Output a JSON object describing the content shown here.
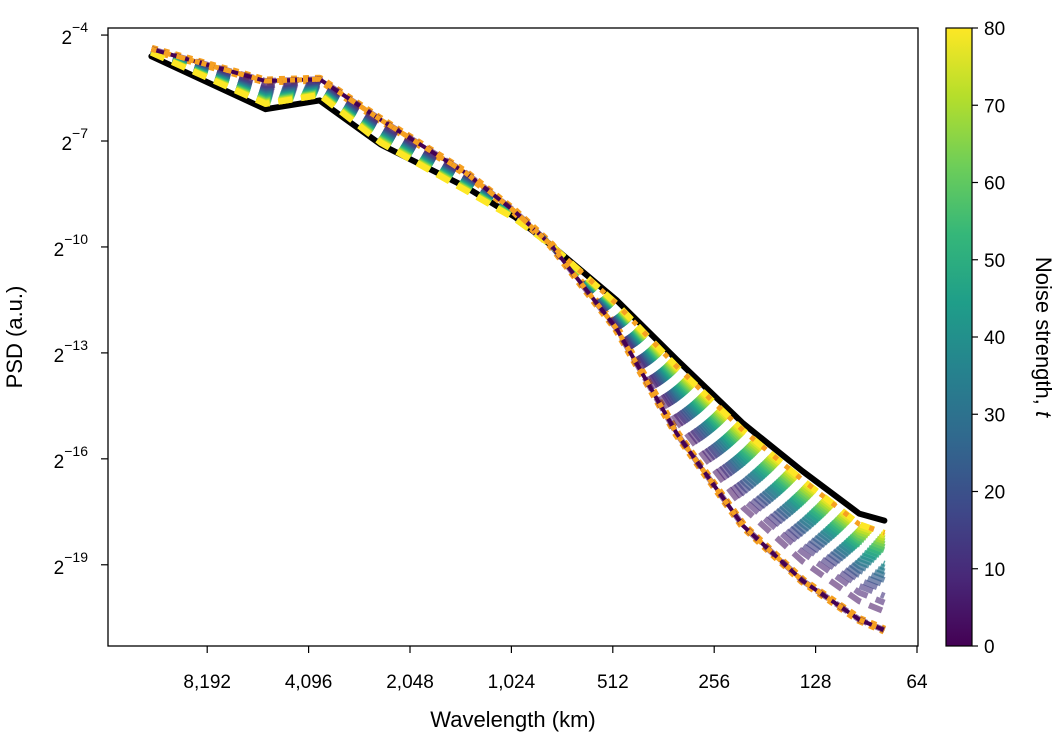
{
  "chart_data": {
    "type": "line",
    "xlabel": "Wavelength (km)",
    "ylabel": "PSD (a.u.)",
    "x_scale": "log2",
    "y_scale": "log2",
    "xlim": [
      16384,
      64
    ],
    "ylim_log2": [
      -21.3,
      -3.8
    ],
    "x_ticks": [
      {
        "value": 8192,
        "label": "8,192"
      },
      {
        "value": 4096,
        "label": "4,096"
      },
      {
        "value": 2048,
        "label": "2,048"
      },
      {
        "value": 1024,
        "label": "1,024"
      },
      {
        "value": 512,
        "label": "512"
      },
      {
        "value": 256,
        "label": "256"
      },
      {
        "value": 128,
        "label": "128"
      },
      {
        "value": 64,
        "label": "64"
      }
    ],
    "y_ticks": [
      {
        "exp": -4,
        "base": "2",
        "sup": "−4"
      },
      {
        "exp": -7,
        "base": "2",
        "sup": "−7"
      },
      {
        "exp": -10,
        "base": "2",
        "sup": "−10"
      },
      {
        "exp": -13,
        "base": "2",
        "sup": "−13"
      },
      {
        "exp": -16,
        "base": "2",
        "sup": "−16"
      },
      {
        "exp": -19,
        "base": "2",
        "sup": "−19"
      }
    ],
    "colorbar": {
      "label": "Noise strength, ",
      "label_italic": "t",
      "range": [
        0,
        80
      ],
      "ticks": [
        {
          "value": 0,
          "label": "0"
        },
        {
          "value": 10,
          "label": "10"
        },
        {
          "value": 20,
          "label": "20"
        },
        {
          "value": 30,
          "label": "30"
        },
        {
          "value": 40,
          "label": "40"
        },
        {
          "value": 50,
          "label": "50"
        },
        {
          "value": 60,
          "label": "60"
        },
        {
          "value": 70,
          "label": "70"
        },
        {
          "value": 80,
          "label": "80"
        }
      ],
      "colormap": "viridis",
      "stops": [
        "#440154",
        "#482878",
        "#3e4989",
        "#31688e",
        "#26828e",
        "#1f9e89",
        "#35b779",
        "#6ece58",
        "#b5de2b",
        "#fde725"
      ]
    },
    "reference_series": {
      "x": [
        12000,
        5500,
        3800,
        2500,
        1400,
        1000,
        780,
        500,
        330,
        210,
        140,
        95,
        80
      ],
      "y_log2": [
        -4.6,
        -6.1,
        -5.85,
        -7.1,
        -8.3,
        -9.15,
        -9.95,
        -11.5,
        -13.2,
        -15.0,
        -16.35,
        -17.55,
        -17.75
      ],
      "color": "#000000"
    },
    "t0_series": {
      "x": [
        12000,
        5500,
        3800,
        2500,
        1400,
        1000,
        780,
        500,
        330,
        210,
        140,
        95,
        80
      ],
      "y_log2": [
        -4.4,
        -5.3,
        -5.25,
        -6.4,
        -7.9,
        -9.0,
        -9.95,
        -12.3,
        -15.3,
        -17.9,
        -19.45,
        -20.55,
        -20.85
      ],
      "color": "#f5a021"
    },
    "t80_series": {
      "x": [
        12000,
        5500,
        3800,
        2500,
        1400,
        1000,
        780,
        500,
        330,
        210,
        140,
        95,
        80
      ],
      "y_log2": [
        -4.5,
        -5.95,
        -5.7,
        -7.05,
        -8.4,
        -9.2,
        -9.95,
        -11.6,
        -13.4,
        -15.2,
        -16.6,
        -17.85,
        -18.1
      ],
      "color": "#fde725"
    },
    "noise_series_count": 20,
    "noise_series_range": [
      0,
      80
    ]
  }
}
